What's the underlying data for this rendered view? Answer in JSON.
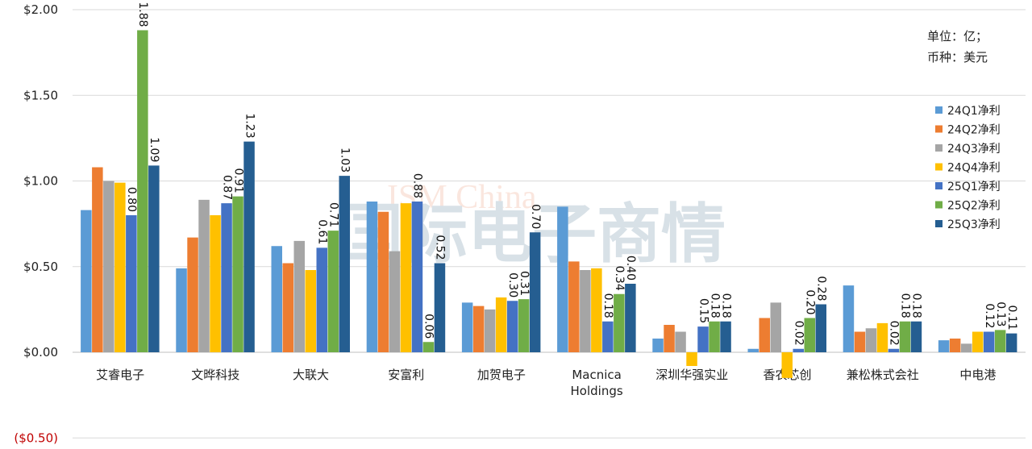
{
  "chart_data": {
    "type": "bar",
    "title": "",
    "xlabel": "",
    "ylabel": "",
    "ylim": [
      -0.5,
      2.0
    ],
    "yticks": [
      2.0,
      1.5,
      1.0,
      0.5,
      0.0,
      -0.5
    ],
    "ytick_labels": [
      "$2.00",
      "$1.50",
      "$1.00",
      "$0.50",
      "$0.00",
      "($0.50)"
    ],
    "grid": true,
    "legend_position": "right",
    "categories": [
      "艾睿电子",
      "文晔科技",
      "大联大",
      "安富利",
      "加贺电子",
      "Macnica Holdings",
      "深圳华强实业",
      "香农芯创",
      "兼松株式会社",
      "中电港"
    ],
    "series": [
      {
        "name": "24Q1净利",
        "color": "#5B9BD5",
        "values": [
          0.83,
          0.49,
          0.62,
          0.88,
          0.29,
          0.85,
          0.08,
          0.02,
          0.39,
          0.07
        ]
      },
      {
        "name": "24Q2净利",
        "color": "#ED7D31",
        "values": [
          1.08,
          0.67,
          0.52,
          0.82,
          0.27,
          0.53,
          0.16,
          0.2,
          0.12,
          0.08
        ]
      },
      {
        "name": "24Q3净利",
        "color": "#A5A5A5",
        "values": [
          1.0,
          0.89,
          0.65,
          0.59,
          0.25,
          0.48,
          0.12,
          0.29,
          0.14,
          0.05
        ]
      },
      {
        "name": "24Q4净利",
        "color": "#FFC000",
        "values": [
          0.99,
          0.8,
          0.48,
          0.87,
          0.32,
          0.49,
          -0.08,
          -0.15,
          0.17,
          0.12
        ]
      },
      {
        "name": "25Q1净利",
        "color": "#4472C4",
        "values": [
          0.8,
          0.87,
          0.61,
          0.88,
          0.3,
          0.18,
          0.15,
          0.02,
          0.02,
          0.12
        ],
        "labeled": true
      },
      {
        "name": "25Q2净利",
        "color": "#70AD47",
        "values": [
          1.88,
          0.91,
          0.71,
          0.06,
          0.31,
          0.34,
          0.18,
          0.2,
          0.18,
          0.13
        ],
        "labeled": true
      },
      {
        "name": "25Q3净利",
        "color": "#255E91",
        "values": [
          1.09,
          1.23,
          1.03,
          0.52,
          0.7,
          0.4,
          0.18,
          0.28,
          0.18,
          0.11
        ],
        "labeled": true
      }
    ],
    "annotations": [
      "单位：亿；",
      "币种：美元"
    ],
    "watermark": "ISM China 国际电子商情"
  }
}
